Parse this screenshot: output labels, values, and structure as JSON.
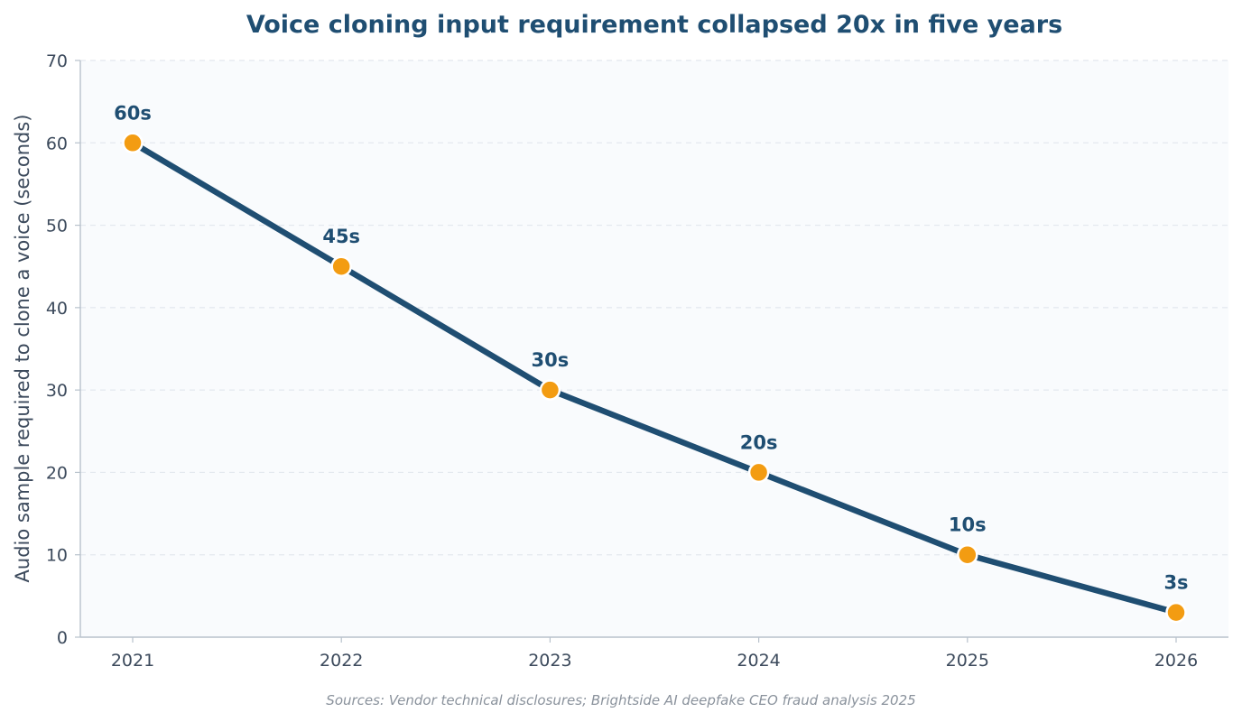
{
  "chart_data": {
    "type": "line",
    "title": "Voice cloning input requirement collapsed 20x in five years",
    "xlabel": "",
    "ylabel": "Audio sample required to clone a voice (seconds)",
    "categories": [
      "2021",
      "2022",
      "2023",
      "2024",
      "2025",
      "2026"
    ],
    "series": [
      {
        "values": [
          60,
          45,
          30,
          20,
          10,
          3
        ],
        "data_labels": [
          "60s",
          "45s",
          "30s",
          "20s",
          "10s",
          "3s"
        ]
      }
    ],
    "ylim": [
      0,
      70
    ],
    "yticks": [
      0,
      10,
      20,
      30,
      40,
      50,
      60,
      70
    ],
    "grid": "horizontal dashed",
    "legend": "none",
    "colors": {
      "line": "#1f4e72",
      "marker": "#f39c12",
      "marker_edge": "#ffffff",
      "plot_background": "#f9fbfd",
      "grid": "#e3e8ee",
      "axis": "#b8c2cc"
    }
  },
  "source_note": "Sources: Vendor technical disclosures; Brightside AI deepfake CEO fraud analysis 2025"
}
